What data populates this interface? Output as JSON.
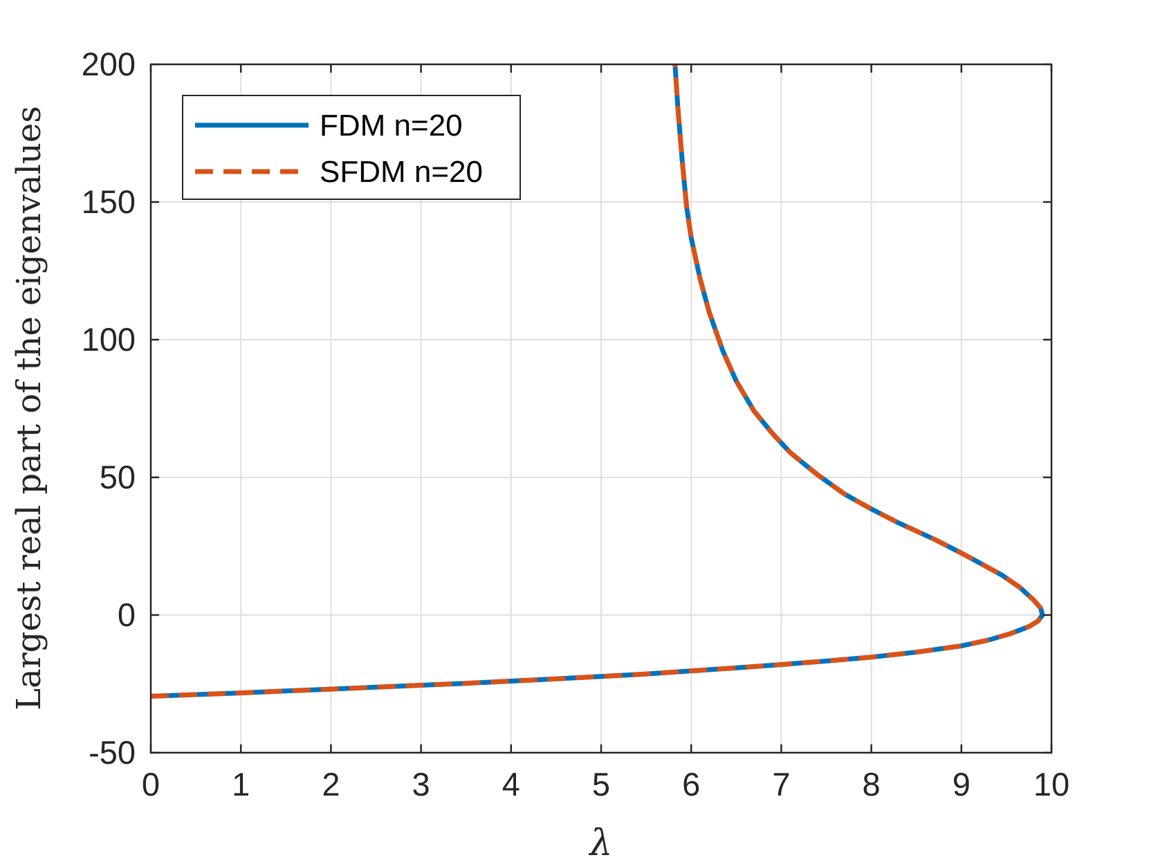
{
  "chart_data": {
    "type": "line",
    "xlabel": "λ",
    "ylabel": "Largest real part of the eigenvalues",
    "xlim": [
      0,
      10
    ],
    "ylim": [
      -50,
      200
    ],
    "xticks": [
      0,
      1,
      2,
      3,
      4,
      5,
      6,
      7,
      8,
      9,
      10
    ],
    "yticks": [
      -50,
      0,
      50,
      100,
      150,
      200
    ],
    "xtick_labels": [
      "0",
      "1",
      "2",
      "3",
      "4",
      "5",
      "6",
      "7",
      "8",
      "9",
      "10"
    ],
    "ytick_labels": [
      "-50",
      "0",
      "50",
      "100",
      "150",
      "200"
    ],
    "grid": true,
    "legend_position": "top-left",
    "series": [
      {
        "name": "FDM n=20",
        "color": "#0072BD",
        "style": "solid",
        "x": [
          0,
          0.5,
          1,
          1.5,
          2,
          2.5,
          3,
          3.5,
          4,
          4.5,
          5,
          5.5,
          6,
          6.5,
          7,
          7.5,
          8,
          8.5,
          9,
          9.3,
          9.55,
          9.75,
          9.85,
          9.9,
          9.88,
          9.8,
          9.65,
          9.45,
          9.2,
          9.0,
          8.7,
          8.3,
          8.0,
          7.7,
          7.4,
          7.1,
          6.9,
          6.7,
          6.5,
          6.35,
          6.2,
          6.1,
          6.0,
          5.95,
          5.9,
          5.85,
          5.82
        ],
        "y": [
          -29.5,
          -28.9,
          -28.3,
          -27.6,
          -26.9,
          -26.2,
          -25.5,
          -24.8,
          -24.0,
          -23.2,
          -22.3,
          -21.4,
          -20.3,
          -19.2,
          -18.0,
          -16.7,
          -15.3,
          -13.5,
          -11.2,
          -9.1,
          -6.7,
          -4.2,
          -2.2,
          0,
          2.5,
          5.5,
          10,
          14.5,
          19,
          22.5,
          27.5,
          33.5,
          38.5,
          44,
          51,
          59,
          66,
          74,
          85,
          96,
          110,
          122,
          137,
          148,
          165,
          185,
          200
        ]
      },
      {
        "name": "SFDM n=20",
        "color": "#D95319",
        "style": "dashed",
        "x": [
          0,
          0.5,
          1,
          1.5,
          2,
          2.5,
          3,
          3.5,
          4,
          4.5,
          5,
          5.5,
          6,
          6.5,
          7,
          7.5,
          8,
          8.5,
          9,
          9.3,
          9.55,
          9.75,
          9.85,
          9.9,
          9.88,
          9.8,
          9.65,
          9.45,
          9.2,
          9.0,
          8.7,
          8.3,
          8.0,
          7.7,
          7.4,
          7.1,
          6.9,
          6.7,
          6.5,
          6.35,
          6.2,
          6.1,
          6.0,
          5.95,
          5.9,
          5.85,
          5.82
        ],
        "y": [
          -29.5,
          -28.9,
          -28.3,
          -27.6,
          -26.9,
          -26.2,
          -25.5,
          -24.8,
          -24.0,
          -23.2,
          -22.3,
          -21.4,
          -20.3,
          -19.2,
          -18.0,
          -16.7,
          -15.3,
          -13.5,
          -11.2,
          -9.1,
          -6.7,
          -4.2,
          -2.2,
          0,
          2.5,
          5.5,
          10,
          14.5,
          19,
          22.5,
          27.5,
          33.5,
          38.5,
          44,
          51,
          59,
          66,
          74,
          85,
          96,
          110,
          122,
          137,
          148,
          165,
          185,
          200
        ]
      }
    ]
  }
}
